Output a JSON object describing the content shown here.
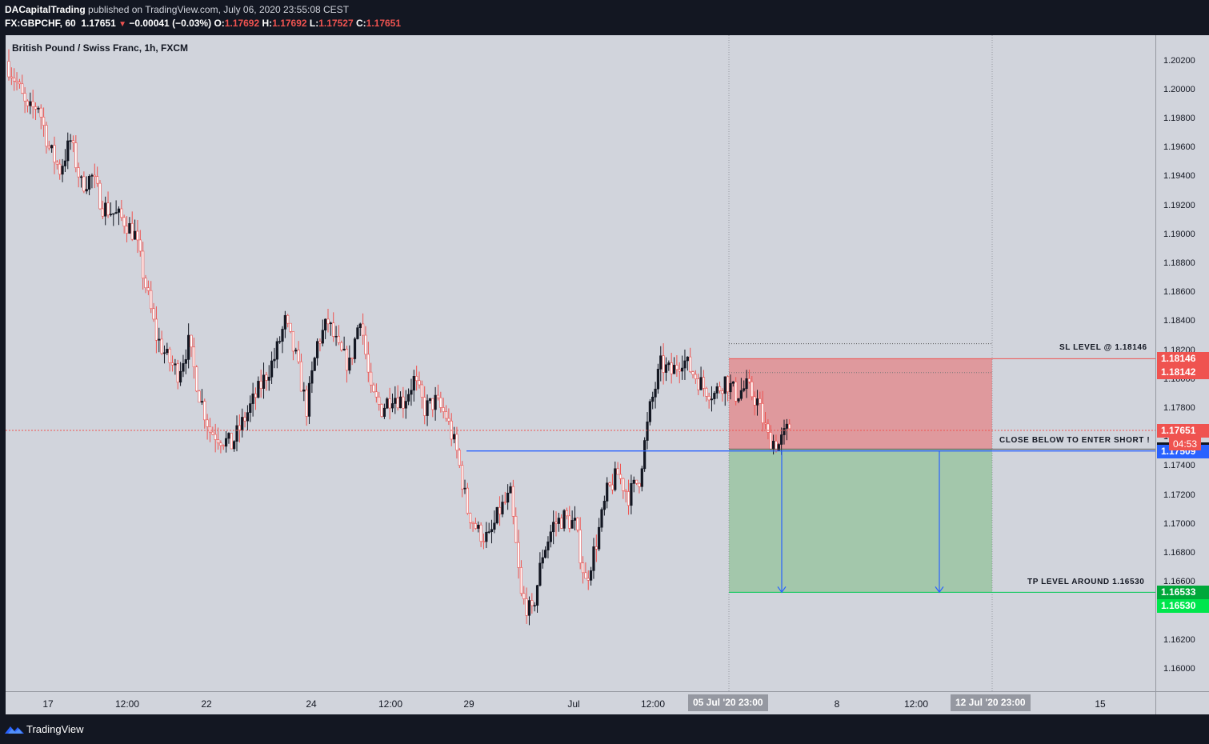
{
  "header": {
    "author": "DACapitalTrading",
    "published": "published on TradingView.com, July 06, 2020 23:55:08 CEST",
    "ticker": "FX:GBPCHF, 60",
    "last": "1.17651",
    "change": "−0.00041 (−0.03%)",
    "o_label": "O:",
    "o": "1.17692",
    "h_label": "H:",
    "h": "1.17692",
    "l_label": "L:",
    "l": "1.17527",
    "c_label": "C:",
    "c": "1.17651"
  },
  "chart_data": {
    "type": "candlestick",
    "symbol_title": "British Pound / Swiss Franc, 1h, FXCM",
    "y_range": [
      1.1585,
      1.2038
    ],
    "price_ticks": [
      "1.20200",
      "1.20000",
      "1.19800",
      "1.19600",
      "1.19400",
      "1.19200",
      "1.19000",
      "1.18800",
      "1.18600",
      "1.18400",
      "1.18200",
      "1.18000",
      "1.17800",
      "1.17600",
      "1.17400",
      "1.17200",
      "1.17000",
      "1.16800",
      "1.16600",
      "1.16400",
      "1.16200",
      "1.16000"
    ],
    "time_ticks": [
      "17",
      "12:00",
      "22",
      "24",
      "12:00",
      "29",
      "Jul",
      "12:00",
      "8",
      "12:00",
      "15"
    ],
    "time_markers": [
      "05 Jul '20   23:00",
      "12 Jul '20   23:00"
    ],
    "close_path": [
      [
        0,
        1.202
      ],
      [
        2,
        1.2005
      ],
      [
        4,
        1.1985
      ],
      [
        6,
        1.199
      ],
      [
        8,
        1.196
      ],
      [
        10,
        1.1945
      ],
      [
        12,
        1.1965
      ],
      [
        14,
        1.1935
      ],
      [
        16,
        1.194
      ],
      [
        18,
        1.192
      ],
      [
        20,
        1.1915
      ],
      [
        22,
        1.191
      ],
      [
        24,
        1.19
      ],
      [
        26,
        1.1865
      ],
      [
        28,
        1.183
      ],
      [
        30,
        1.1815
      ],
      [
        32,
        1.1805
      ],
      [
        34,
        1.1825
      ],
      [
        36,
        1.179
      ],
      [
        38,
        1.1765
      ],
      [
        40,
        1.176
      ],
      [
        42,
        1.1755
      ],
      [
        44,
        1.177
      ],
      [
        46,
        1.1785
      ],
      [
        48,
        1.18
      ],
      [
        50,
        1.1815
      ],
      [
        52,
        1.184
      ],
      [
        54,
        1.1815
      ],
      [
        56,
        1.178
      ],
      [
        58,
        1.1825
      ],
      [
        60,
        1.184
      ],
      [
        62,
        1.182
      ],
      [
        64,
        1.181
      ],
      [
        66,
        1.1845
      ],
      [
        68,
        1.179
      ],
      [
        70,
        1.178
      ],
      [
        72,
        1.179
      ],
      [
        74,
        1.1785
      ],
      [
        76,
        1.18
      ],
      [
        78,
        1.178
      ],
      [
        80,
        1.1785
      ],
      [
        82,
        1.1775
      ],
      [
        84,
        1.175
      ],
      [
        86,
        1.171
      ],
      [
        88,
        1.1695
      ],
      [
        90,
        1.169
      ],
      [
        92,
        1.171
      ],
      [
        94,
        1.172
      ],
      [
        96,
        1.165
      ],
      [
        98,
        1.1638
      ],
      [
        100,
        1.168
      ],
      [
        102,
        1.17
      ],
      [
        104,
        1.1705
      ],
      [
        106,
        1.17
      ],
      [
        108,
        1.166
      ],
      [
        110,
        1.1688
      ],
      [
        112,
        1.1722
      ],
      [
        114,
        1.1735
      ],
      [
        116,
        1.172
      ],
      [
        118,
        1.1732
      ],
      [
        120,
        1.178
      ],
      [
        122,
        1.181
      ],
      [
        124,
        1.1805
      ],
      [
        126,
        1.1815
      ],
      [
        128,
        1.1805
      ],
      [
        130,
        1.1795
      ],
      [
        132,
        1.179
      ],
      [
        134,
        1.18
      ],
      [
        136,
        1.179
      ],
      [
        138,
        1.1795
      ],
      [
        140,
        1.1785
      ],
      [
        142,
        1.176
      ],
      [
        144,
        1.1755
      ],
      [
        146,
        1.1768
      ]
    ],
    "lines": [
      {
        "name": "last-price",
        "value": 1.17651
      },
      {
        "name": "close-below-level",
        "value": 1.17522
      },
      {
        "name": "entry-line",
        "value": 1.17509
      },
      {
        "name": "stop-loss",
        "value": 1.18146
      },
      {
        "name": "take-profit",
        "value": 1.16533
      }
    ],
    "position": {
      "direction": "short",
      "entry": 1.17522,
      "stop": 1.18146,
      "target": 1.16533
    }
  },
  "annotations": {
    "sl": "SL LEVEL @ 1.18146",
    "close": "CLOSE BELOW TO ENTER SHORT !",
    "tp": "TP LEVEL AROUND 1.16530"
  },
  "price_labels": {
    "sl1": "1.18146",
    "sl2": "1.18142",
    "last": "1.17651",
    "countdown": "04:53",
    "close": "1.17522",
    "entry": "1.17509",
    "tp1": "1.16533",
    "tp2": "1.16530"
  },
  "colors": {
    "up": "#131722",
    "down": "#ef5350",
    "risk": "#ef5350",
    "reward": "#4caf50",
    "entry": "#2962ff"
  },
  "footer": {
    "brand": "TradingView"
  }
}
